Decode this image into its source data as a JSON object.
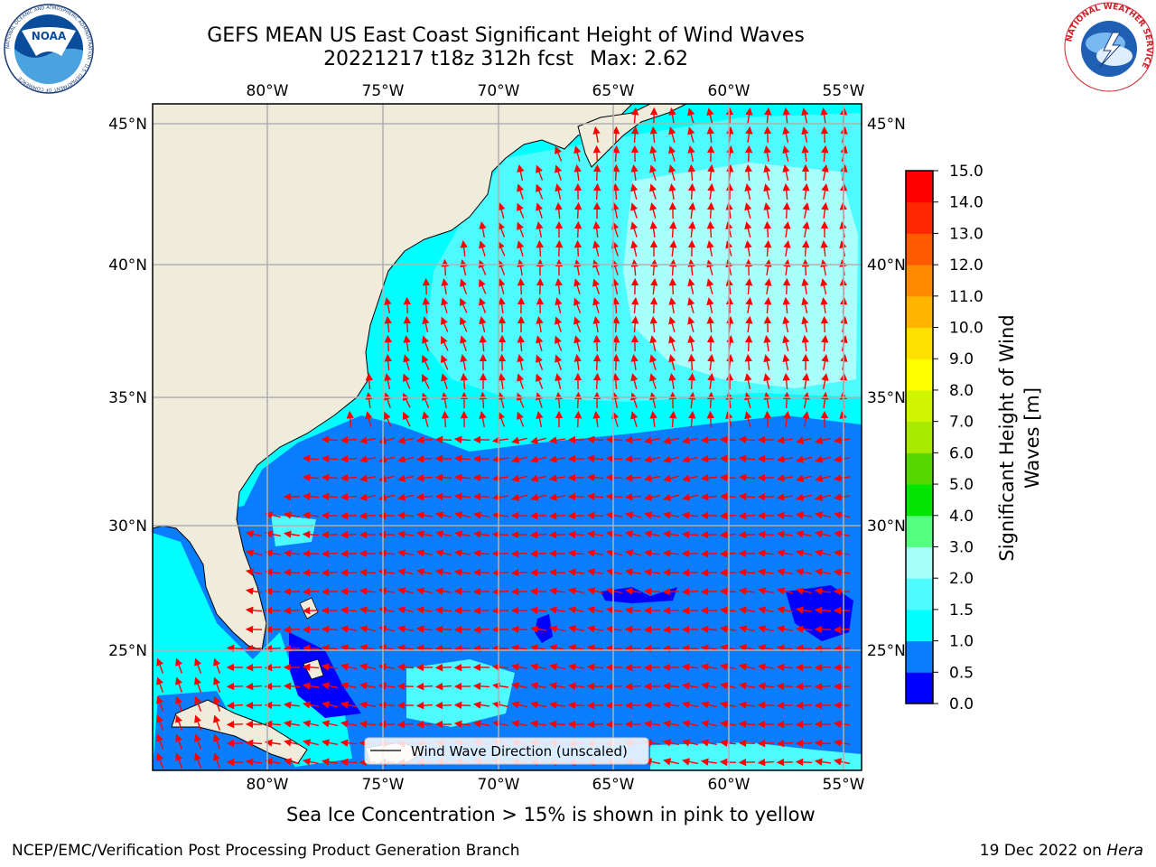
{
  "header": {
    "title_line1": "GEFS MEAN US East Coast Significant Height of Wind Waves",
    "title_line2": "20221217 t18z 312h fcst",
    "max_label": "Max: 2.62"
  },
  "logos": {
    "left": {
      "text": "NOAA",
      "ring_text": "NATIONAL OCEANIC AND ATMOSPHERIC ADMINISTRATION · U.S. DEPARTMENT OF COMMERCE"
    },
    "right": {
      "ring_text": "NATIONAL WEATHER SERVICE"
    }
  },
  "map": {
    "lon_labels": [
      "80°W",
      "75°W",
      "70°W",
      "65°W",
      "60°W",
      "55°W"
    ],
    "lat_labels": [
      "45°N",
      "40°N",
      "35°N",
      "30°N",
      "25°N"
    ],
    "legend_label": "Wind Wave Direction (unscaled)",
    "vector_color": "#ff0000",
    "land_color": "#efecdc"
  },
  "colorbar": {
    "label": "Significant Height of Wind Waves [m]",
    "label_line1": "Significant Height of Wind",
    "label_line2": "Waves [m]",
    "ticks": [
      "0.0",
      "0.5",
      "1.0",
      "1.5",
      "2.0",
      "3.0",
      "4.0",
      "5.0",
      "6.0",
      "7.0",
      "8.0",
      "9.0",
      "10.0",
      "11.0",
      "12.0",
      "13.0",
      "14.0",
      "15.0"
    ],
    "colors": [
      "#0000ff",
      "#0a7dff",
      "#00ffff",
      "#4efbff",
      "#a8fffc",
      "#55ff7f",
      "#00e400",
      "#55d900",
      "#a8ea00",
      "#cff500",
      "#ffff00",
      "#ffe000",
      "#ffb400",
      "#ff8a00",
      "#ff5a00",
      "#ff2800",
      "#ff0000"
    ]
  },
  "footer": {
    "ice_note": "Sea Ice Concentration > 15% is shown in pink to yellow",
    "credit": "NCEP/EMC/Verification Post Processing Product Generation Branch",
    "date": "19 Dec 2022 on",
    "machine": "Hera"
  }
}
